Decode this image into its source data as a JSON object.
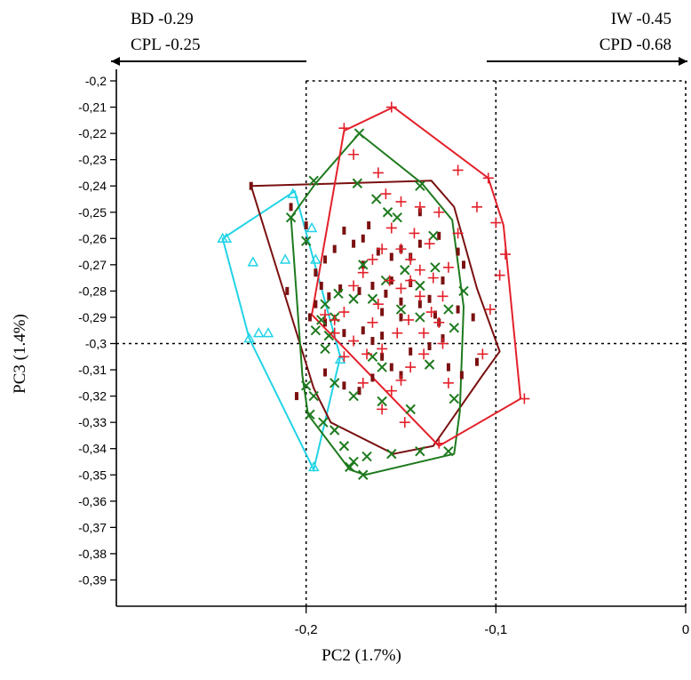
{
  "chart_data": {
    "type": "scatter",
    "title": "",
    "xlabel": "PC2 (1.7%)",
    "ylabel": "PC3  (1.4%)",
    "xlim": [
      -0.3,
      0.0
    ],
    "ylim": [
      -0.4,
      -0.2
    ],
    "x_ticks": [
      {
        "value": -0.2,
        "label": "-0,2"
      },
      {
        "value": -0.1,
        "label": "-0,1"
      },
      {
        "value": 0.0,
        "label": "0"
      }
    ],
    "y_ticks": [
      {
        "value": -0.2,
        "label": "-0,2"
      },
      {
        "value": -0.21,
        "label": "-0,21"
      },
      {
        "value": -0.22,
        "label": "-0,22"
      },
      {
        "value": -0.23,
        "label": "-0,23"
      },
      {
        "value": -0.24,
        "label": "-0,24"
      },
      {
        "value": -0.25,
        "label": "-0,25"
      },
      {
        "value": -0.26,
        "label": "-0,26"
      },
      {
        "value": -0.27,
        "label": "-0,27"
      },
      {
        "value": -0.28,
        "label": "-0,28"
      },
      {
        "value": -0.29,
        "label": "-0,29"
      },
      {
        "value": -0.3,
        "label": "-0,3"
      },
      {
        "value": -0.31,
        "label": "-0,31"
      },
      {
        "value": -0.32,
        "label": "-0,32"
      },
      {
        "value": -0.33,
        "label": "-0,33"
      },
      {
        "value": -0.34,
        "label": "-0,34"
      },
      {
        "value": -0.35,
        "label": "-0,35"
      },
      {
        "value": -0.36,
        "label": "-0,36"
      },
      {
        "value": -0.37,
        "label": "-0,37"
      },
      {
        "value": -0.38,
        "label": "-0,38"
      },
      {
        "value": -0.39,
        "label": "-0,39"
      }
    ],
    "reference_lines": {
      "vertical": [
        -0.2,
        -0.1,
        0.0
      ],
      "horizontal": [
        -0.3,
        -0.2
      ]
    },
    "loadings": {
      "left": [
        "BD -0.29",
        "CPL -0.25"
      ],
      "right": [
        "IW -0.45",
        "CPD -0.68"
      ]
    },
    "series": [
      {
        "marker": "triangle",
        "color": "#22D3E6",
        "points": [
          [
            -0.244,
            -0.26
          ],
          [
            -0.242,
            -0.26
          ],
          [
            -0.228,
            -0.269
          ],
          [
            -0.23,
            -0.298
          ],
          [
            -0.225,
            -0.296
          ],
          [
            -0.22,
            -0.296
          ],
          [
            -0.207,
            -0.243
          ],
          [
            -0.211,
            -0.268
          ],
          [
            -0.197,
            -0.256
          ],
          [
            -0.195,
            -0.268
          ],
          [
            -0.196,
            -0.347
          ],
          [
            -0.182,
            -0.306
          ]
        ],
        "hull": [
          [
            -0.244,
            -0.26
          ],
          [
            -0.206,
            -0.242
          ],
          [
            -0.182,
            -0.305
          ],
          [
            -0.196,
            -0.348
          ],
          [
            -0.23,
            -0.298
          ]
        ]
      },
      {
        "marker": "bar",
        "color": "#7A1010",
        "points": [
          [
            -0.229,
            -0.24
          ],
          [
            -0.208,
            -0.248
          ],
          [
            -0.2,
            -0.255
          ],
          [
            -0.195,
            -0.273
          ],
          [
            -0.19,
            -0.268
          ],
          [
            -0.185,
            -0.264
          ],
          [
            -0.18,
            -0.257
          ],
          [
            -0.175,
            -0.262
          ],
          [
            -0.17,
            -0.26
          ],
          [
            -0.167,
            -0.255
          ],
          [
            -0.162,
            -0.265
          ],
          [
            -0.155,
            -0.267
          ],
          [
            -0.15,
            -0.264
          ],
          [
            -0.145,
            -0.267
          ],
          [
            -0.14,
            -0.262
          ],
          [
            -0.13,
            -0.259
          ],
          [
            -0.12,
            -0.265
          ],
          [
            -0.117,
            -0.27
          ],
          [
            -0.112,
            -0.29
          ],
          [
            -0.11,
            -0.307
          ],
          [
            -0.12,
            -0.287
          ],
          [
            -0.128,
            -0.298
          ],
          [
            -0.132,
            -0.289
          ],
          [
            -0.14,
            -0.285
          ],
          [
            -0.15,
            -0.284
          ],
          [
            -0.158,
            -0.281
          ],
          [
            -0.165,
            -0.278
          ],
          [
            -0.172,
            -0.28
          ],
          [
            -0.182,
            -0.279
          ],
          [
            -0.188,
            -0.282
          ],
          [
            -0.192,
            -0.278
          ],
          [
            -0.195,
            -0.285
          ],
          [
            -0.198,
            -0.29
          ],
          [
            -0.19,
            -0.292
          ],
          [
            -0.18,
            -0.296
          ],
          [
            -0.17,
            -0.295
          ],
          [
            -0.165,
            -0.299
          ],
          [
            -0.16,
            -0.305
          ],
          [
            -0.155,
            -0.309
          ],
          [
            -0.15,
            -0.312
          ],
          [
            -0.145,
            -0.303
          ],
          [
            -0.135,
            -0.301
          ],
          [
            -0.125,
            -0.309
          ],
          [
            -0.118,
            -0.312
          ],
          [
            -0.165,
            -0.313
          ],
          [
            -0.172,
            -0.318
          ],
          [
            -0.18,
            -0.316
          ],
          [
            -0.19,
            -0.311
          ],
          [
            -0.15,
            -0.29
          ],
          [
            -0.16,
            -0.288
          ],
          [
            -0.155,
            -0.276
          ],
          [
            -0.145,
            -0.277
          ],
          [
            -0.135,
            -0.283
          ],
          [
            -0.128,
            -0.276
          ],
          [
            -0.14,
            -0.25
          ],
          [
            -0.13,
            -0.292
          ],
          [
            -0.17,
            -0.27
          ],
          [
            -0.16,
            -0.297
          ],
          [
            -0.205,
            -0.32
          ],
          [
            -0.21,
            -0.28
          ]
        ],
        "hull": [
          [
            -0.229,
            -0.24
          ],
          [
            -0.134,
            -0.238
          ],
          [
            -0.122,
            -0.248
          ],
          [
            -0.11,
            -0.279
          ],
          [
            -0.098,
            -0.303
          ],
          [
            -0.107,
            -0.312
          ],
          [
            -0.133,
            -0.339
          ],
          [
            -0.154,
            -0.342
          ],
          [
            -0.187,
            -0.33
          ],
          [
            -0.196,
            -0.317
          ]
        ]
      },
      {
        "marker": "cross",
        "color": "#1E7A1E",
        "points": [
          [
            -0.172,
            -0.22
          ],
          [
            -0.196,
            -0.238
          ],
          [
            -0.173,
            -0.239
          ],
          [
            -0.208,
            -0.252
          ],
          [
            -0.2,
            -0.261
          ],
          [
            -0.163,
            -0.245
          ],
          [
            -0.157,
            -0.25
          ],
          [
            -0.152,
            -0.252
          ],
          [
            -0.14,
            -0.24
          ],
          [
            -0.133,
            -0.259
          ],
          [
            -0.148,
            -0.272
          ],
          [
            -0.158,
            -0.276
          ],
          [
            -0.17,
            -0.27
          ],
          [
            -0.183,
            -0.281
          ],
          [
            -0.19,
            -0.285
          ],
          [
            -0.175,
            -0.283
          ],
          [
            -0.165,
            -0.283
          ],
          [
            -0.15,
            -0.287
          ],
          [
            -0.14,
            -0.29
          ],
          [
            -0.125,
            -0.287
          ],
          [
            -0.122,
            -0.294
          ],
          [
            -0.117,
            -0.28
          ],
          [
            -0.185,
            -0.29
          ],
          [
            -0.192,
            -0.291
          ],
          [
            -0.195,
            -0.295
          ],
          [
            -0.188,
            -0.297
          ],
          [
            -0.19,
            -0.302
          ],
          [
            -0.165,
            -0.305
          ],
          [
            -0.16,
            -0.309
          ],
          [
            -0.135,
            -0.308
          ],
          [
            -0.185,
            -0.315
          ],
          [
            -0.175,
            -0.32
          ],
          [
            -0.16,
            -0.322
          ],
          [
            -0.145,
            -0.325
          ],
          [
            -0.2,
            -0.316
          ],
          [
            -0.196,
            -0.32
          ],
          [
            -0.185,
            -0.333
          ],
          [
            -0.18,
            -0.339
          ],
          [
            -0.175,
            -0.345
          ],
          [
            -0.17,
            -0.35
          ],
          [
            -0.155,
            -0.342
          ],
          [
            -0.14,
            -0.341
          ],
          [
            -0.125,
            -0.341
          ],
          [
            -0.122,
            -0.321
          ],
          [
            -0.198,
            -0.327
          ],
          [
            -0.191,
            -0.33
          ],
          [
            -0.177,
            -0.347
          ],
          [
            -0.168,
            -0.343
          ],
          [
            -0.14,
            -0.278
          ],
          [
            -0.132,
            -0.271
          ]
        ],
        "hull": [
          [
            -0.172,
            -0.22
          ],
          [
            -0.139,
            -0.239
          ],
          [
            -0.123,
            -0.253
          ],
          [
            -0.117,
            -0.286
          ],
          [
            -0.119,
            -0.326
          ],
          [
            -0.122,
            -0.342
          ],
          [
            -0.169,
            -0.35
          ],
          [
            -0.177,
            -0.348
          ],
          [
            -0.199,
            -0.327
          ],
          [
            -0.202,
            -0.312
          ],
          [
            -0.208,
            -0.252
          ],
          [
            -0.195,
            -0.239
          ]
        ]
      },
      {
        "marker": "plus",
        "color": "#E3202A",
        "points": [
          [
            -0.155,
            -0.21
          ],
          [
            -0.18,
            -0.218
          ],
          [
            -0.175,
            -0.228
          ],
          [
            -0.162,
            -0.235
          ],
          [
            -0.158,
            -0.243
          ],
          [
            -0.15,
            -0.246
          ],
          [
            -0.14,
            -0.248
          ],
          [
            -0.13,
            -0.25
          ],
          [
            -0.12,
            -0.234
          ],
          [
            -0.11,
            -0.248
          ],
          [
            -0.104,
            -0.237
          ],
          [
            -0.1,
            -0.254
          ],
          [
            -0.095,
            -0.266
          ],
          [
            -0.098,
            -0.274
          ],
          [
            -0.103,
            -0.287
          ],
          [
            -0.107,
            -0.304
          ],
          [
            -0.085,
            -0.321
          ],
          [
            -0.12,
            -0.258
          ],
          [
            -0.125,
            -0.271
          ],
          [
            -0.133,
            -0.275
          ],
          [
            -0.14,
            -0.272
          ],
          [
            -0.145,
            -0.268
          ],
          [
            -0.15,
            -0.264
          ],
          [
            -0.16,
            -0.264
          ],
          [
            -0.165,
            -0.268
          ],
          [
            -0.17,
            -0.273
          ],
          [
            -0.175,
            -0.278
          ],
          [
            -0.18,
            -0.288
          ],
          [
            -0.185,
            -0.291
          ],
          [
            -0.19,
            -0.289
          ],
          [
            -0.185,
            -0.296
          ],
          [
            -0.175,
            -0.299
          ],
          [
            -0.168,
            -0.304
          ],
          [
            -0.16,
            -0.302
          ],
          [
            -0.152,
            -0.296
          ],
          [
            -0.146,
            -0.291
          ],
          [
            -0.14,
            -0.282
          ],
          [
            -0.134,
            -0.288
          ],
          [
            -0.13,
            -0.292
          ],
          [
            -0.128,
            -0.3
          ],
          [
            -0.138,
            -0.304
          ],
          [
            -0.145,
            -0.309
          ],
          [
            -0.15,
            -0.314
          ],
          [
            -0.155,
            -0.318
          ],
          [
            -0.13,
            -0.338
          ],
          [
            -0.125,
            -0.315
          ],
          [
            -0.162,
            -0.285
          ],
          [
            -0.165,
            -0.292
          ],
          [
            -0.156,
            -0.276
          ],
          [
            -0.15,
            -0.279
          ],
          [
            -0.145,
            -0.276
          ],
          [
            -0.138,
            -0.296
          ],
          [
            -0.17,
            -0.315
          ],
          [
            -0.18,
            -0.305
          ],
          [
            -0.16,
            -0.325
          ],
          [
            -0.148,
            -0.33
          ],
          [
            -0.135,
            -0.262
          ],
          [
            -0.128,
            -0.282
          ],
          [
            -0.155,
            -0.256
          ],
          [
            -0.143,
            -0.258
          ]
        ],
        "hull": [
          [
            -0.154,
            -0.21
          ],
          [
            -0.104,
            -0.237
          ],
          [
            -0.096,
            -0.255
          ],
          [
            -0.087,
            -0.321
          ],
          [
            -0.13,
            -0.339
          ],
          [
            -0.197,
            -0.289
          ],
          [
            -0.18,
            -0.219
          ]
        ]
      }
    ]
  }
}
